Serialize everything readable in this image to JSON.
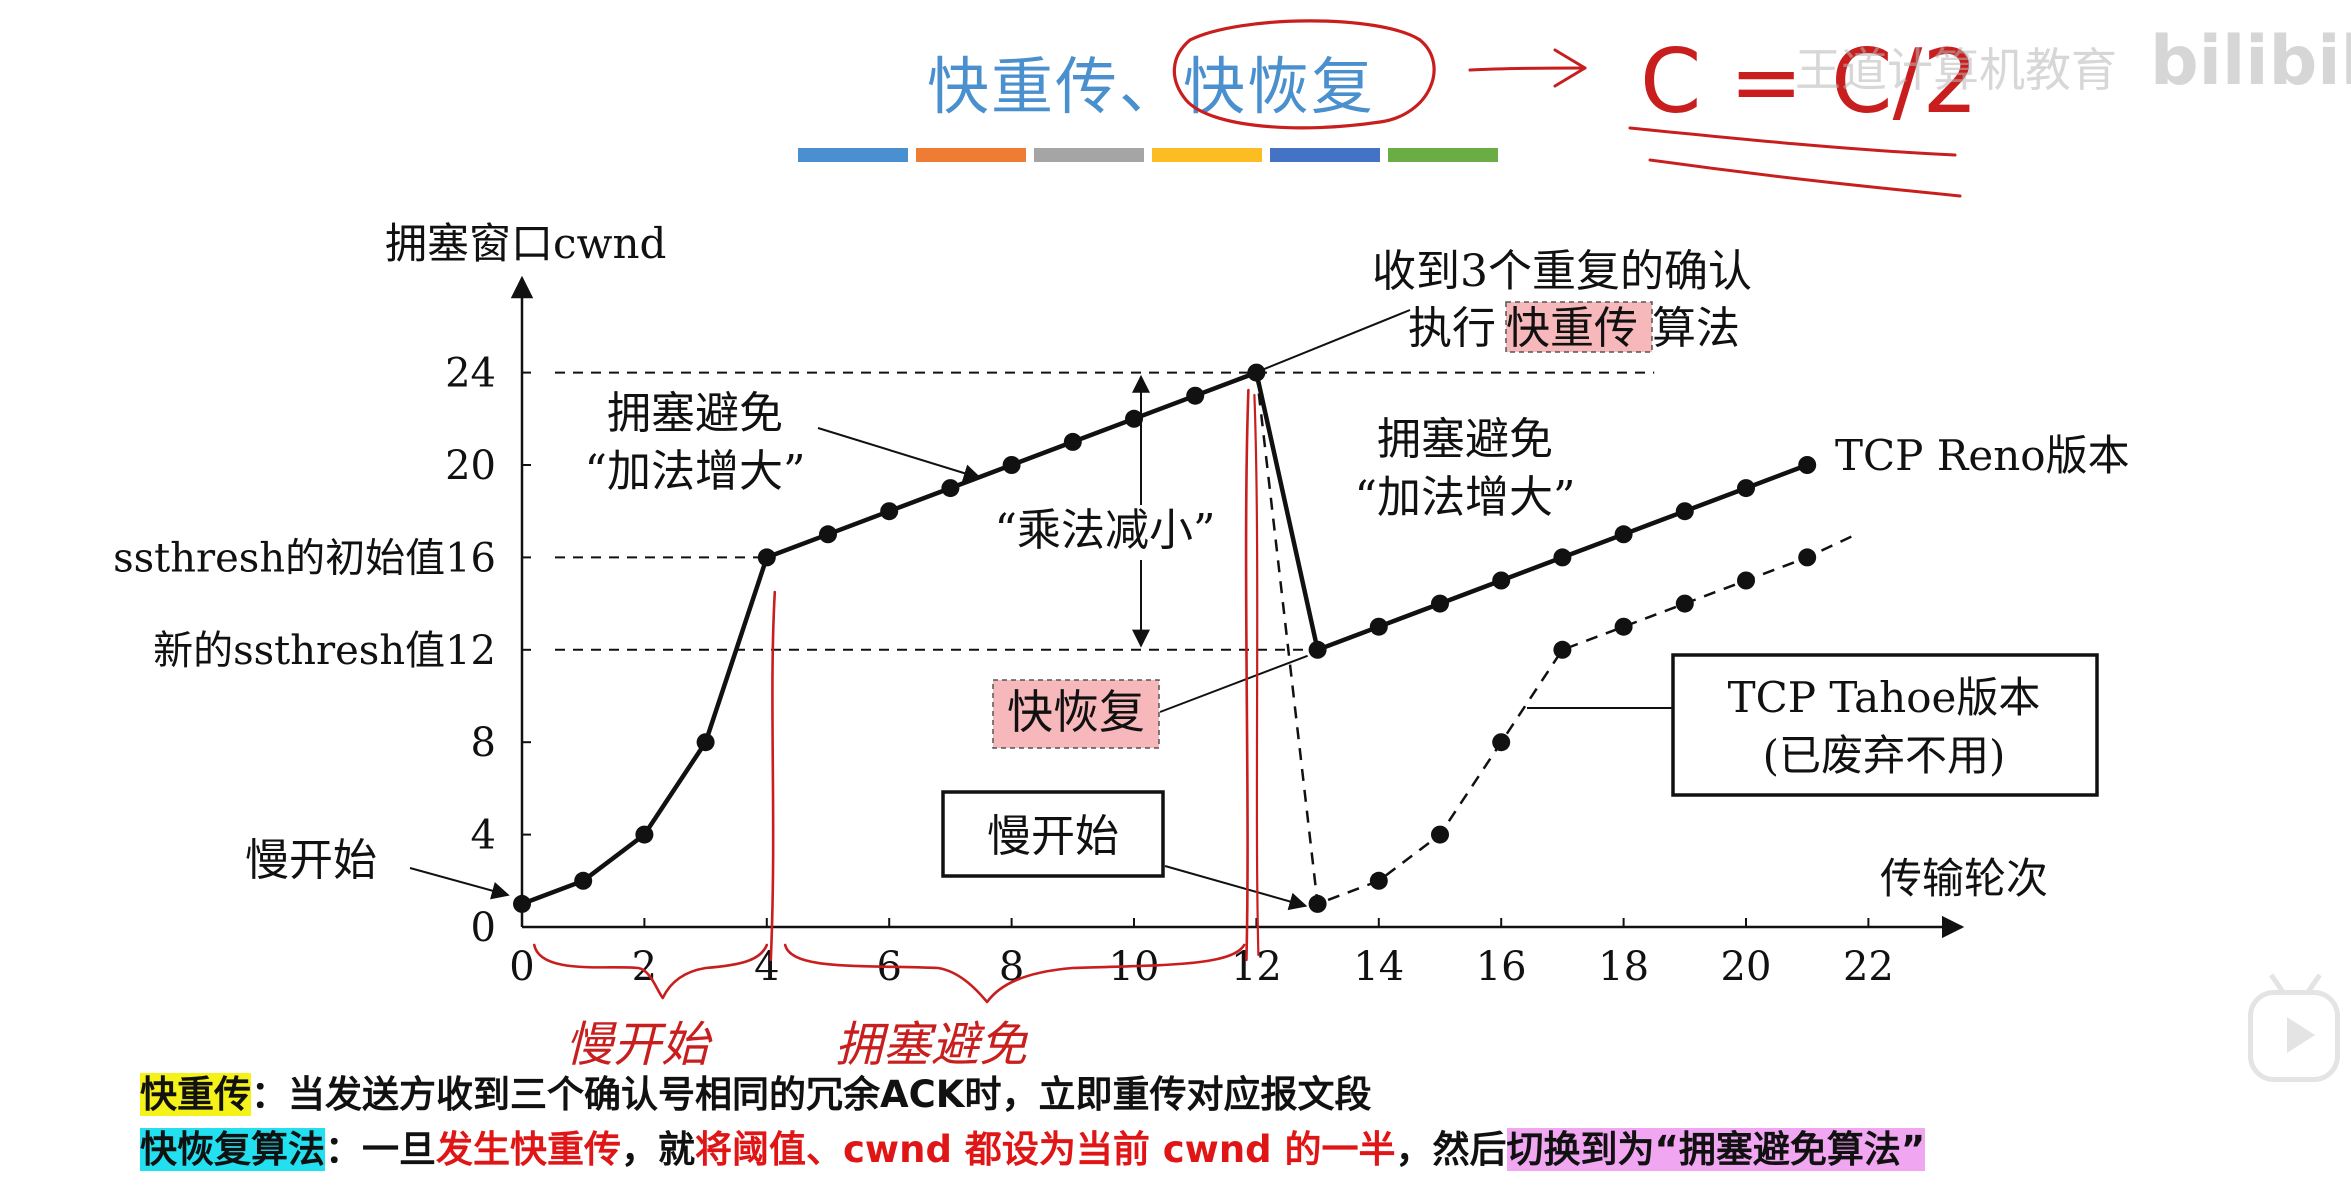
{
  "header": {
    "title_part1": "快重传、",
    "title_part2": "快恢复",
    "handwritten_formula": "C = C/2",
    "watermark": "王道计算机教育",
    "watermark_logo": "bilibili",
    "color_bar_colors": [
      "#4a90d0",
      "#ee7d33",
      "#a5a5a5",
      "#fcbd23",
      "#4472c4",
      "#6aad45"
    ]
  },
  "chart_data": {
    "type": "line",
    "xlabel": "传输轮次",
    "ylabel": "拥塞窗口cwnd",
    "xlim": [
      0,
      22
    ],
    "ylim": [
      0,
      24
    ],
    "x_ticks": [
      0,
      2,
      4,
      6,
      8,
      10,
      12,
      14,
      16,
      18,
      20,
      22
    ],
    "y_ticks": [
      0,
      4,
      8,
      12,
      16,
      20,
      24
    ],
    "y_tick_labels": [
      "0",
      "4",
      "8",
      "12",
      "ssthresh的初始值16",
      "20",
      "24"
    ],
    "extra_y_label": {
      "value": 12,
      "text": "新的ssthresh值12"
    },
    "series": [
      {
        "name": "TCP Reno版本",
        "style": "solid",
        "x": [
          0,
          1,
          2,
          3,
          4,
          5,
          6,
          7,
          8,
          9,
          10,
          11,
          12,
          13,
          14,
          15,
          16,
          17,
          18,
          19,
          20,
          21
        ],
        "y": [
          1,
          2,
          4,
          8,
          16,
          17,
          18,
          19,
          20,
          21,
          22,
          23,
          24,
          12,
          13,
          14,
          15,
          16,
          17,
          18,
          19,
          20
        ]
      },
      {
        "name": "TCP Tahoe版本",
        "style": "dashed",
        "x": [
          12,
          13,
          14,
          15,
          16,
          17,
          18,
          19,
          20,
          21,
          21.8
        ],
        "y": [
          24,
          1,
          2,
          4,
          8,
          12,
          13,
          14,
          15,
          16,
          17
        ],
        "markers_until": 21
      }
    ],
    "reference_lines": [
      24,
      16,
      12
    ],
    "annotations": {
      "slow_start_1": "慢开始",
      "slow_start_2": "慢开始",
      "cong_avoid_1_line1": "拥塞避免",
      "cong_avoid_1_line2": "“加法增大”",
      "cong_avoid_2_line1": "拥塞避免",
      "cong_avoid_2_line2": "“加法增大”",
      "mult_decrease": "“乘法减小”",
      "dup_ack_line1": "收到3个重复的确认",
      "dup_ack_line2_pre": "执行",
      "dup_ack_line2_hl": "快重传",
      "dup_ack_line2_post": "算法",
      "fast_recovery": "快恢复",
      "reno_label": "TCP Reno版本",
      "tahoe_line1": "TCP Tahoe版本",
      "tahoe_line2": "(已废弃不用)"
    },
    "handwritten_brackets": [
      "慢开始",
      "拥塞避免"
    ]
  },
  "description": {
    "line1_term": "快重传",
    "line1_rest": "：当发送方收到三个确认号相同的冗余ACK时，立即重传对应报文段",
    "line2_term": "快恢复算法",
    "line2_a": "：一旦",
    "line2_b": "发生快重传",
    "line2_c": "，就",
    "line2_d": "将阈值、cwnd 都设为当前 cwnd 的一半",
    "line2_e": "，然后",
    "line2_f": "切换到为“拥塞避免算法”"
  }
}
